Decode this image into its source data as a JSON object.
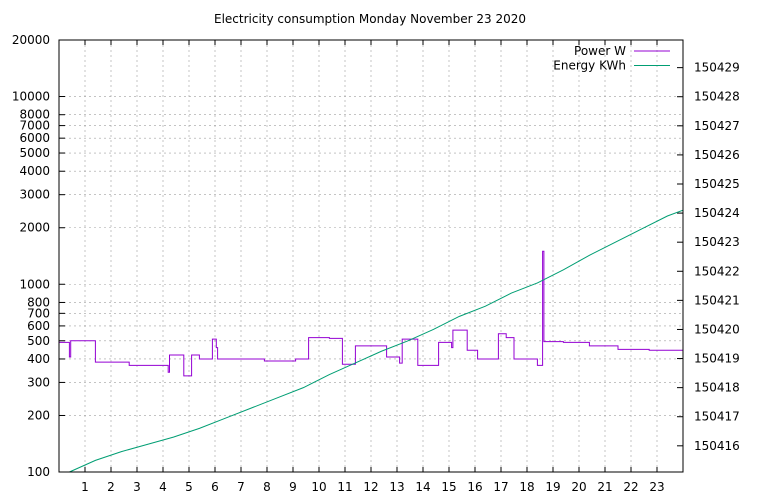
{
  "chart_data": {
    "type": "line",
    "title": "Electricity consumption Monday November 23 2020",
    "xlabel": "",
    "ylabel": "",
    "y2label": "",
    "grid": true,
    "legend_position": "top-right",
    "x_range": [
      0,
      24
    ],
    "x_ticks": [
      1,
      2,
      3,
      4,
      5,
      6,
      7,
      8,
      9,
      10,
      11,
      12,
      13,
      14,
      15,
      16,
      17,
      18,
      19,
      20,
      21,
      22,
      23
    ],
    "y_scale": "log",
    "y_range": [
      100,
      20000
    ],
    "y_ticks": [
      100,
      200,
      300,
      400,
      500,
      600,
      700,
      800,
      1000,
      2000,
      3000,
      4000,
      5000,
      6000,
      7000,
      8000,
      10000,
      20000
    ],
    "y2_range": [
      150415.1,
      150429.95
    ],
    "y2_ticks": [
      150416,
      150417,
      150418,
      150419,
      150420,
      150421,
      150422,
      150423,
      150424,
      150425,
      150426,
      150427,
      150428,
      150429
    ],
    "series": [
      {
        "name": "Power W",
        "axis": "y",
        "color": "#9400d3",
        "points": [
          [
            0,
            490
          ],
          [
            0.4,
            490
          ],
          [
            0.4,
            410
          ],
          [
            0.45,
            410
          ],
          [
            0.45,
            500
          ],
          [
            1.4,
            500
          ],
          [
            1.4,
            385
          ],
          [
            2.7,
            385
          ],
          [
            2.7,
            370
          ],
          [
            4.2,
            370
          ],
          [
            4.2,
            340
          ],
          [
            4.25,
            340
          ],
          [
            4.25,
            420
          ],
          [
            4.8,
            420
          ],
          [
            4.8,
            325
          ],
          [
            5.1,
            325
          ],
          [
            5.1,
            420
          ],
          [
            5.4,
            420
          ],
          [
            5.4,
            400
          ],
          [
            5.9,
            400
          ],
          [
            5.9,
            510
          ],
          [
            6.05,
            510
          ],
          [
            6.05,
            460
          ],
          [
            6.1,
            460
          ],
          [
            6.1,
            400
          ],
          [
            7.9,
            400
          ],
          [
            7.9,
            390
          ],
          [
            9.1,
            390
          ],
          [
            9.1,
            400
          ],
          [
            9.6,
            400
          ],
          [
            9.6,
            520
          ],
          [
            10.4,
            520
          ],
          [
            10.4,
            515
          ],
          [
            10.9,
            515
          ],
          [
            10.9,
            375
          ],
          [
            11.4,
            375
          ],
          [
            11.4,
            470
          ],
          [
            12.6,
            470
          ],
          [
            12.6,
            410
          ],
          [
            13.1,
            410
          ],
          [
            13.1,
            380
          ],
          [
            13.2,
            380
          ],
          [
            13.2,
            510
          ],
          [
            13.8,
            510
          ],
          [
            13.8,
            370
          ],
          [
            14.6,
            370
          ],
          [
            14.6,
            490
          ],
          [
            15.1,
            490
          ],
          [
            15.1,
            460
          ],
          [
            15.15,
            460
          ],
          [
            15.15,
            570
          ],
          [
            15.7,
            570
          ],
          [
            15.7,
            445
          ],
          [
            16.1,
            445
          ],
          [
            16.1,
            400
          ],
          [
            16.9,
            400
          ],
          [
            16.9,
            545
          ],
          [
            17.2,
            545
          ],
          [
            17.2,
            520
          ],
          [
            17.5,
            520
          ],
          [
            17.5,
            400
          ],
          [
            18.4,
            400
          ],
          [
            18.4,
            370
          ],
          [
            18.6,
            370
          ],
          [
            18.6,
            1500
          ],
          [
            18.65,
            1500
          ],
          [
            18.65,
            495
          ],
          [
            19.4,
            495
          ],
          [
            19.4,
            490
          ],
          [
            20.4,
            490
          ],
          [
            20.4,
            470
          ],
          [
            21.5,
            470
          ],
          [
            21.5,
            450
          ],
          [
            22.7,
            450
          ],
          [
            22.7,
            445
          ],
          [
            24,
            445
          ]
        ]
      },
      {
        "name": "Energy KWh",
        "axis": "y2",
        "color": "#009e73",
        "points": [
          [
            0.4,
            150415.1
          ],
          [
            1.4,
            150415.5
          ],
          [
            2.4,
            150415.8
          ],
          [
            3.4,
            150416.05
          ],
          [
            4.4,
            150416.3
          ],
          [
            5.4,
            150416.6
          ],
          [
            6.4,
            150416.95
          ],
          [
            7.4,
            150417.3
          ],
          [
            8.4,
            150417.65
          ],
          [
            9.4,
            150418.0
          ],
          [
            10.4,
            150418.45
          ],
          [
            11.4,
            150418.85
          ],
          [
            12.4,
            150419.25
          ],
          [
            13.4,
            150419.6
          ],
          [
            14.4,
            150420.0
          ],
          [
            15.4,
            150420.45
          ],
          [
            16.4,
            150420.8
          ],
          [
            17.4,
            150421.25
          ],
          [
            18.4,
            150421.6
          ],
          [
            19.4,
            150422.05
          ],
          [
            20.4,
            150422.55
          ],
          [
            21.4,
            150423.0
          ],
          [
            22.4,
            150423.45
          ],
          [
            23.4,
            150423.9
          ],
          [
            24,
            150424.1
          ]
        ]
      }
    ]
  }
}
